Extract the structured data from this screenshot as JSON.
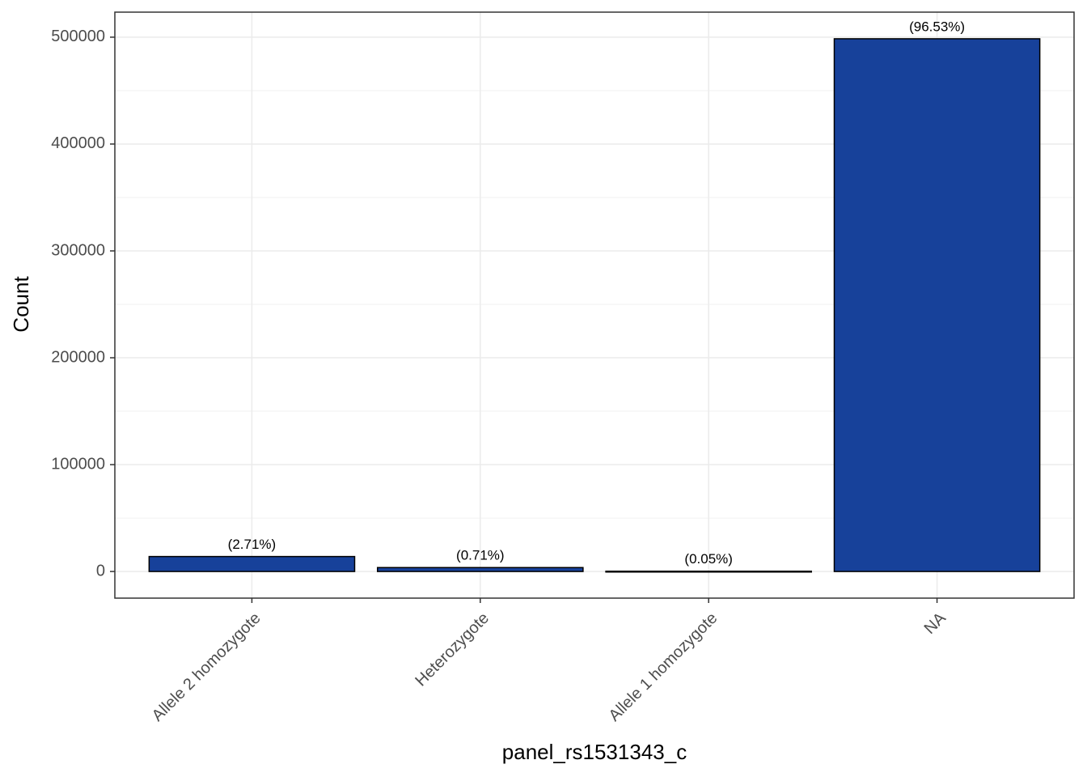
{
  "chart_data": {
    "type": "bar",
    "x_label": "panel_rs1531343_c",
    "y_label": "Count",
    "categories": [
      "Allele 2 homozygote",
      "Heterozygote",
      "Allele 1 homozygote",
      "NA"
    ],
    "values": [
      14000,
      3670,
      260,
      498500
    ],
    "bar_labels": [
      "(2.71%)",
      "(0.71%)",
      "(0.05%)",
      "(96.53%)"
    ],
    "color": "#17419a",
    "ylim": [
      -24925,
      523425
    ],
    "yticks": [
      0,
      100000,
      200000,
      300000,
      400000,
      500000
    ],
    "minor_yticks": [
      50000,
      150000,
      250000,
      350000,
      450000
    ],
    "grid": true
  }
}
